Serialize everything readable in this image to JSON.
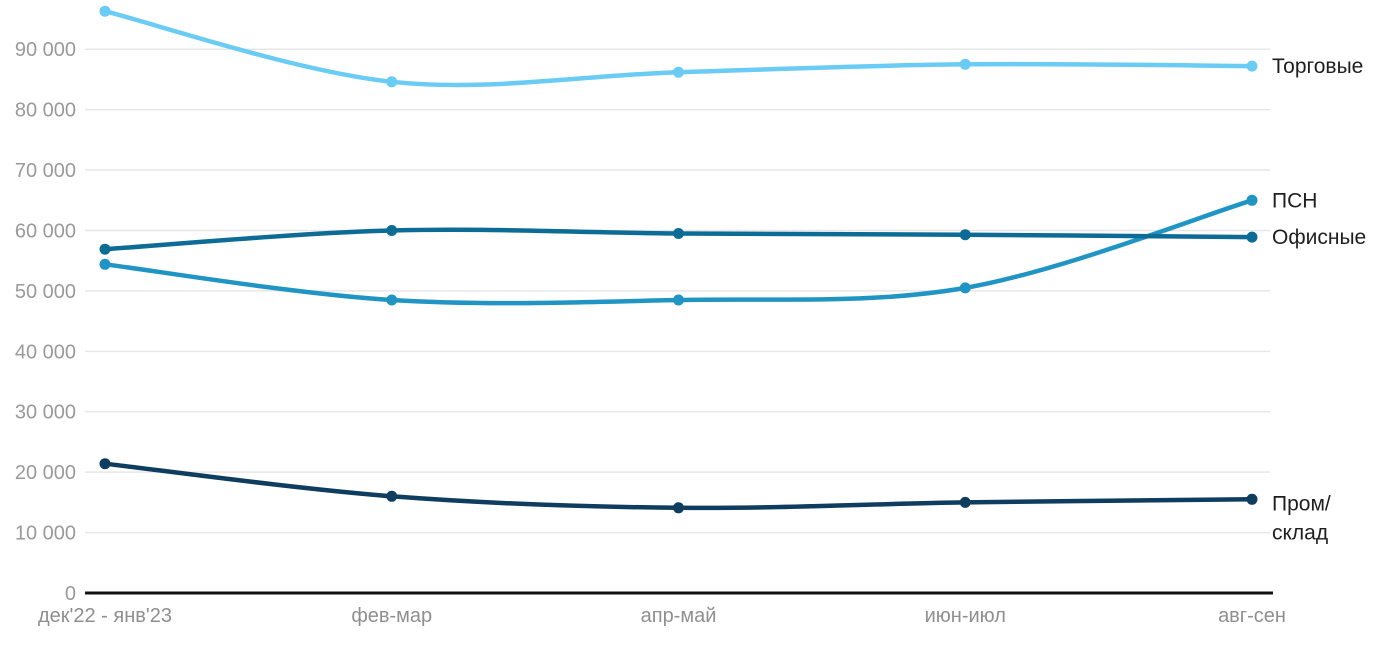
{
  "chart_data": {
    "type": "line",
    "categories": [
      "дек'22 - янв'23",
      "фев-мар",
      "апр-май",
      "июн-июл",
      "авг-сен"
    ],
    "series": [
      {
        "name": "Торговые",
        "color": "#6accf4",
        "values": [
          96300,
          84600,
          86200,
          87500,
          87200
        ],
        "label_lines": [
          "Торговые"
        ]
      },
      {
        "name": "ПСН",
        "color": "#2095c4",
        "values": [
          54400,
          48500,
          48500,
          50500,
          65000
        ],
        "label_lines": [
          "ПСН"
        ]
      },
      {
        "name": "Офисные",
        "color": "#0d6c96",
        "values": [
          56900,
          60000,
          59500,
          59300,
          58900
        ],
        "label_lines": [
          "Офисные"
        ]
      },
      {
        "name": "Пром/склад",
        "color": "#0e3d60",
        "values": [
          21400,
          16000,
          14100,
          15000,
          15500
        ],
        "label_lines": [
          "Пром/",
          "склад"
        ]
      }
    ],
    "yticks": [
      {
        "value": 0,
        "label": "0"
      },
      {
        "value": 10000,
        "label": "10 000"
      },
      {
        "value": 20000,
        "label": "20 000"
      },
      {
        "value": 30000,
        "label": "30 000"
      },
      {
        "value": 40000,
        "label": "40 000"
      },
      {
        "value": 50000,
        "label": "50 000"
      },
      {
        "value": 60000,
        "label": "60 000"
      },
      {
        "value": 70000,
        "label": "70 000"
      },
      {
        "value": 80000,
        "label": "80 000"
      },
      {
        "value": 90000,
        "label": "90 000"
      }
    ],
    "title": "",
    "xlabel": "",
    "ylabel": "",
    "ylim": [
      0,
      98000
    ],
    "grid": true,
    "legend_position": "right-of-line-end"
  },
  "colors": {
    "background": "#ffffff",
    "grid": "#e7e7e7",
    "axis": "#111111",
    "tick_label": "#9a9a9a",
    "series_label": "#1f1f1f"
  }
}
